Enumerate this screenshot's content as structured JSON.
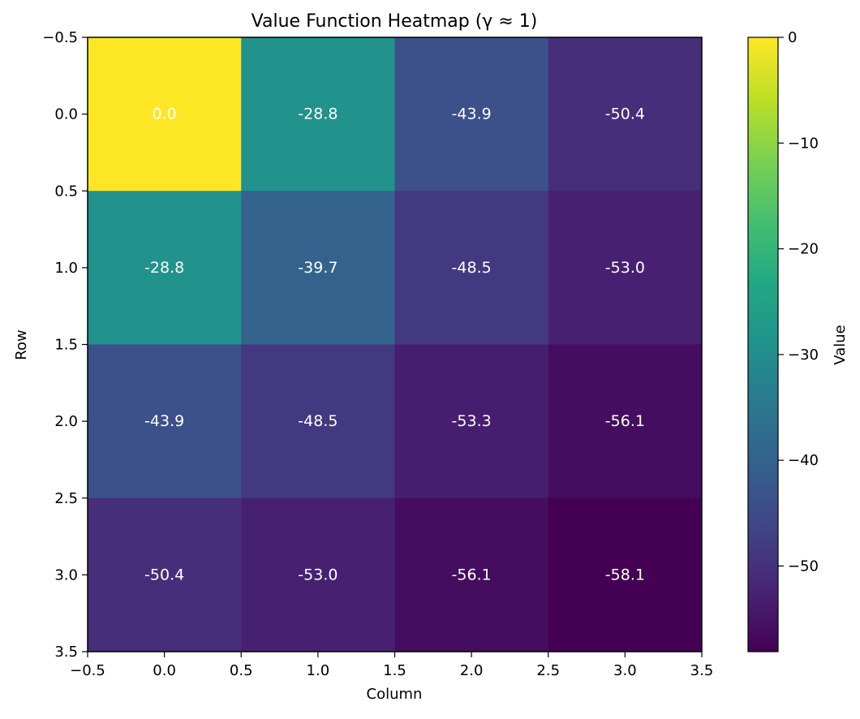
{
  "chart_data": {
    "type": "heatmap",
    "title": "Value Function Heatmap (γ ≈ 1)",
    "xlabel": "Column",
    "ylabel": "Row",
    "colorbar_label": "Value",
    "colormap": "viridis",
    "rows": [
      0,
      1,
      2,
      3
    ],
    "columns": [
      0,
      1,
      2,
      3
    ],
    "values": [
      [
        0.0,
        -28.8,
        -43.9,
        -50.4
      ],
      [
        -28.8,
        -39.7,
        -48.5,
        -53.0
      ],
      [
        -43.9,
        -48.5,
        -53.3,
        -56.1
      ],
      [
        -50.4,
        -53.0,
        -56.1,
        -58.1
      ]
    ],
    "cell_labels": [
      [
        "0.0",
        "-28.8",
        "-43.9",
        "-50.4"
      ],
      [
        "-28.8",
        "-39.7",
        "-48.5",
        "-53.0"
      ],
      [
        "-43.9",
        "-48.5",
        "-53.3",
        "-56.1"
      ],
      [
        "-50.4",
        "-53.0",
        "-56.1",
        "-58.1"
      ]
    ],
    "label_color": "#ffffff",
    "xlim": [
      -0.5,
      3.5
    ],
    "ylim": [
      3.5,
      -0.5
    ],
    "x_ticks": [
      "−0.5",
      "0.0",
      "0.5",
      "1.0",
      "1.5",
      "2.0",
      "2.5",
      "3.0",
      "3.5"
    ],
    "y_ticks": [
      "−0.5",
      "0.0",
      "0.5",
      "1.0",
      "1.5",
      "2.0",
      "2.5",
      "3.0",
      "3.5"
    ],
    "color_range": [
      -58.1,
      0.0
    ],
    "colorbar_ticks": [
      {
        "value": 0,
        "label": "0"
      },
      {
        "value": -10,
        "label": "−10"
      },
      {
        "value": -20,
        "label": "−20"
      },
      {
        "value": -30,
        "label": "−30"
      },
      {
        "value": -40,
        "label": "−40"
      },
      {
        "value": -50,
        "label": "−50"
      }
    ],
    "grid": false
  }
}
